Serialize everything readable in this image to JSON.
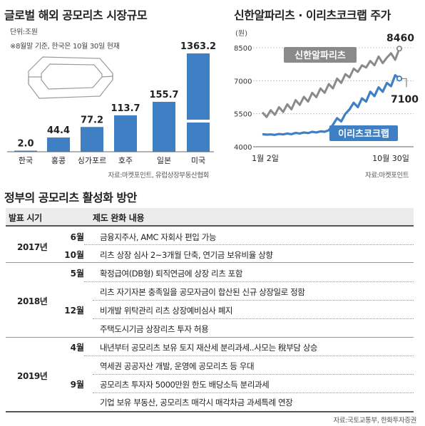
{
  "chart_data": [
    {
      "type": "bar",
      "title": "글로벌 해외 공모리츠 시장규모",
      "unit": "단위:조원",
      "note": "※8월말 기준, 한국은 10월 30일 현재",
      "categories": [
        "한국",
        "홍콩",
        "싱가포르",
        "호주",
        "일본",
        "미국"
      ],
      "values": [
        2.0,
        44.4,
        77.2,
        113.7,
        155.7,
        1363.2
      ],
      "value_labels": [
        "2.0",
        "44.4",
        "77.2",
        "113.7",
        "155.7",
        "1363.2"
      ],
      "axis_break": true,
      "source": "자료:마켓포인트, 유럽상장부동산협회",
      "color": "#3f7fc4"
    },
    {
      "type": "line",
      "title": "신한알파리츠 · 이리츠코크랩 주가",
      "yunit": "(원)",
      "yticks": [
        8500,
        7000,
        5500,
        4000
      ],
      "ylim": [
        4000,
        8700
      ],
      "xlabels": [
        "1월 2일",
        "10월 30일"
      ],
      "series": [
        {
          "name": "신한알파리츠",
          "color": "#8a8a8a",
          "values": [
            5560,
            5350,
            5660,
            5450,
            5800,
            5580,
            5930,
            5700,
            6120,
            5900,
            6270,
            6050,
            6450,
            6250,
            6650,
            6450,
            6850,
            6650,
            7100,
            6900,
            7300,
            7150,
            7550,
            7400,
            7700,
            7600,
            7900,
            7700,
            8100,
            7800,
            8050,
            8250,
            7950,
            8460
          ],
          "end_label": "8460"
        },
        {
          "name": "이리츠코크랩",
          "color": "#3f7fc4",
          "values": [
            4570,
            4550,
            4560,
            4540,
            4580,
            4560,
            4600,
            4570,
            4630,
            4600,
            4650,
            4620,
            4680,
            4650,
            4700,
            4680,
            4750,
            5000,
            5300,
            5150,
            5500,
            5700,
            6000,
            5800,
            6200,
            6050,
            6500,
            6300,
            6700,
            6500,
            6900,
            6750,
            7250,
            7100
          ],
          "end_label": "7100"
        }
      ],
      "source": "자료:마켓포인트"
    }
  ],
  "table": {
    "title": "정부의 공모리츠 활성화 방안",
    "headers": {
      "date": "발표 시기",
      "content": "제도 완화 내용"
    },
    "groups": [
      {
        "year": "2017년",
        "months": [
          {
            "month": "6월",
            "items": [
              "금융지주사, AMC 자회사 편입 가능"
            ]
          },
          {
            "month": "10월",
            "items": [
              "리츠 상장 심사 2~3개월 단축, 연기금 보유비율 상향"
            ]
          }
        ]
      },
      {
        "year": "2018년",
        "months": [
          {
            "month": "5월",
            "items": [
              "확정급여(DB형) 퇴직연금에 상장 리츠 포함"
            ]
          },
          {
            "month": "12월",
            "items": [
              "리츠 자기자본 충족일을 공모자금이 합산된 신규 상장일로 정함",
              "비개발 위탁관리 리츠 상장예비심사 폐지",
              "주택도시기금 상장리츠 투자 허용"
            ]
          }
        ]
      },
      {
        "year": "2019년",
        "months": [
          {
            "month": "4월",
            "items": [
              "내년부터 공모리츠 보유 토지 재산세 분리과세..사모는 稅부담 상승"
            ]
          },
          {
            "month": "9월",
            "items": [
              "역세권 공공자산 개발, 운영에 공모리츠 등 우대",
              "공모리츠 투자자 5000만원 한도 배당소득 분리과세",
              "기업 보유 부동산, 공모리츠 매각시 매각차금 과세특례 연장"
            ]
          }
        ]
      }
    ],
    "source": "자료:국토교통부, 한화투자증권"
  }
}
